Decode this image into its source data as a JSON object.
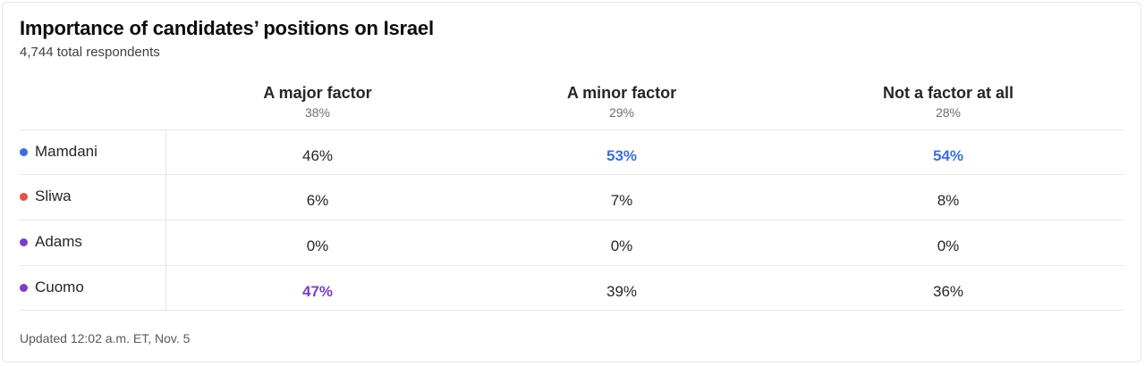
{
  "title": "Importance of candidates’ positions on Israel",
  "subtitle": "4,744 total respondents",
  "footer": "Updated 12:02 a.m. ET, Nov. 5",
  "columns": [
    {
      "label": "A major factor",
      "share": "38%"
    },
    {
      "label": "A minor factor",
      "share": "29%"
    },
    {
      "label": "Not a factor at all",
      "share": "28%"
    }
  ],
  "rows": [
    {
      "name": "Mamdani",
      "color": "#3b6fe0",
      "values": [
        "46%",
        "53%",
        "54%"
      ]
    },
    {
      "name": "Sliwa",
      "color": "#e0514b",
      "values": [
        "6%",
        "7%",
        "8%"
      ]
    },
    {
      "name": "Adams",
      "color": "#7b3fc4",
      "values": [
        "0%",
        "0%",
        "0%"
      ]
    },
    {
      "name": "Cuomo",
      "color": "#7b3fc4",
      "values": [
        "47%",
        "39%",
        "36%"
      ]
    }
  ],
  "chart_data": {
    "type": "table",
    "title": "Importance of candidates’ positions on Israel",
    "subtitle": "4,744 total respondents",
    "categories": [
      "A major factor",
      "A minor factor",
      "Not a factor at all"
    ],
    "category_shares": [
      38,
      29,
      28
    ],
    "series": [
      {
        "name": "Mamdani",
        "values": [
          46,
          53,
          54
        ]
      },
      {
        "name": "Sliwa",
        "values": [
          6,
          7,
          8
        ]
      },
      {
        "name": "Adams",
        "values": [
          0,
          0,
          0
        ]
      },
      {
        "name": "Cuomo",
        "values": [
          47,
          39,
          36
        ]
      }
    ],
    "column_winners": [
      "Cuomo",
      "Mamdani",
      "Mamdani"
    ]
  }
}
